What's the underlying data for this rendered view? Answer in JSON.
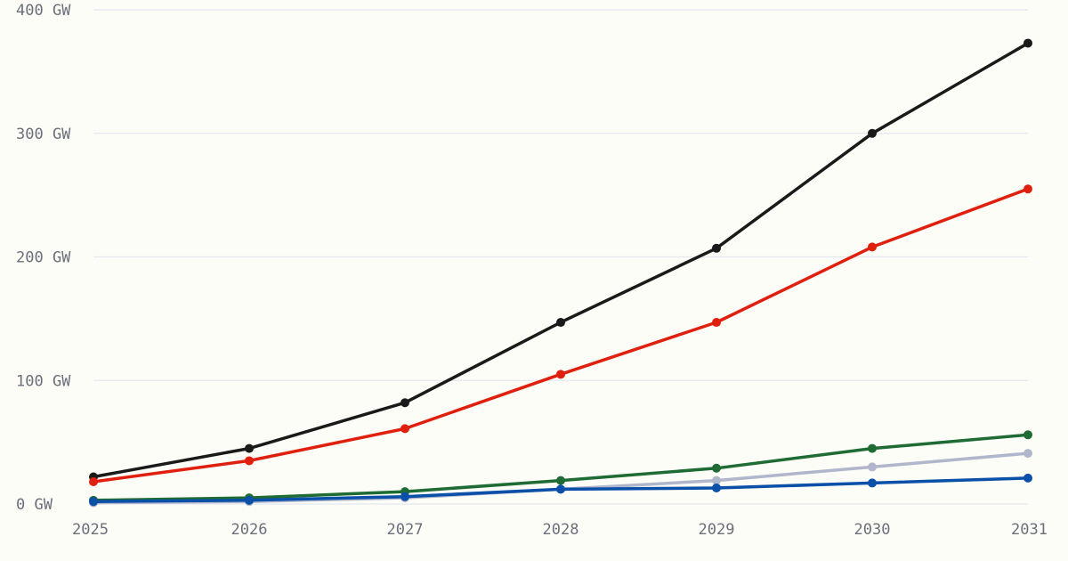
{
  "chart_data": {
    "type": "line",
    "title": "",
    "xlabel": "",
    "ylabel": "",
    "x": [
      2025,
      2026,
      2027,
      2028,
      2029,
      2030,
      2031
    ],
    "x_tick_labels": [
      "2025",
      "2026",
      "2027",
      "2028",
      "2029",
      "2030",
      "2031"
    ],
    "y_ticks": [
      0,
      100,
      200,
      300,
      400
    ],
    "y_tick_labels": [
      "0 GW",
      "100 GW",
      "200 GW",
      "300 GW",
      "400 GW"
    ],
    "ylim": [
      0,
      400
    ],
    "grid": true,
    "legend": "none",
    "series": [
      {
        "color": "#1a1a1a",
        "values": [
          22,
          45,
          82,
          147,
          207,
          300,
          373
        ]
      },
      {
        "color": "#e0200f",
        "values": [
          18,
          35,
          61,
          105,
          147,
          208,
          255
        ]
      },
      {
        "color": "#1e6b34",
        "values": [
          3,
          5,
          10,
          19,
          29,
          45,
          56
        ]
      },
      {
        "color": "#b0b6cc",
        "values": [
          1,
          2,
          5,
          12,
          19,
          30,
          41
        ]
      },
      {
        "color": "#0a4fa8",
        "values": [
          2,
          3,
          6,
          12,
          13,
          17,
          21
        ]
      }
    ]
  }
}
